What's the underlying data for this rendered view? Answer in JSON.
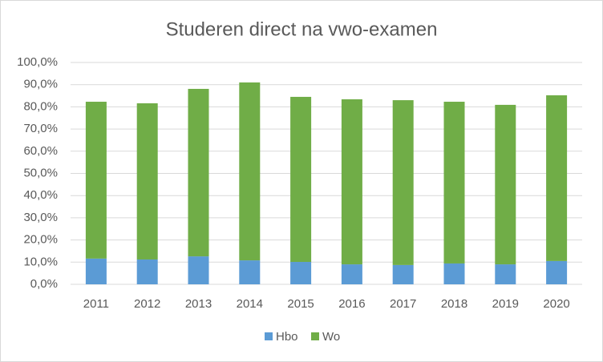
{
  "chart_data": {
    "type": "stacked-bar",
    "title": "Studeren direct na vwo-examen",
    "categories": [
      "2011",
      "2012",
      "2013",
      "2014",
      "2015",
      "2016",
      "2017",
      "2018",
      "2019",
      "2020"
    ],
    "series": [
      {
        "name": "Hbo",
        "color": "#5b9bd5",
        "values": [
          11.6,
          11.2,
          12.6,
          10.8,
          10.1,
          9.0,
          8.7,
          9.4,
          9.0,
          10.5
        ]
      },
      {
        "name": "Wo",
        "color": "#70ad47",
        "values": [
          70.7,
          70.4,
          75.5,
          80.2,
          74.4,
          74.4,
          74.3,
          72.9,
          71.9,
          74.7
        ]
      }
    ],
    "ylim": [
      0,
      100
    ],
    "yticks": [
      {
        "value": 0,
        "label": "0,0%"
      },
      {
        "value": 10,
        "label": "10,0%"
      },
      {
        "value": 20,
        "label": "20,0%"
      },
      {
        "value": 30,
        "label": "30,0%"
      },
      {
        "value": 40,
        "label": "40,0%"
      },
      {
        "value": 50,
        "label": "50,0%"
      },
      {
        "value": 60,
        "label": "60,0%"
      },
      {
        "value": 70,
        "label": "70,0%"
      },
      {
        "value": 80,
        "label": "80,0%"
      },
      {
        "value": 90,
        "label": "90,0%"
      },
      {
        "value": 100,
        "label": "100,0%"
      }
    ],
    "grid": true,
    "legend": "bottom"
  }
}
